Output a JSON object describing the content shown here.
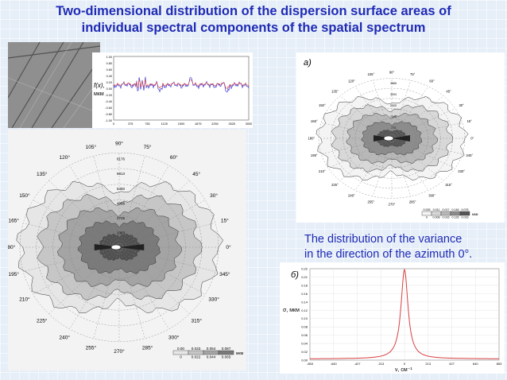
{
  "slide": {
    "title_line1": "Two-dimensional distribution of the dispersion surface areas of",
    "title_line2": "individual spectral components of the spatial spectrum",
    "caption_line1": "The distribution of the variance",
    "caption_line2": "in the direction of the azimuth 0°."
  },
  "profile_plot": {
    "ylabel_sym": "f(x),",
    "ylabel_unit": "мкм",
    "y_ticks": [
      "1.00",
      "0.80",
      "0.60",
      "0.40",
      "0.20",
      "0.00",
      "-0.20",
      "-0.40",
      "-0.60",
      "-0.80",
      "-1.00"
    ],
    "x_ticks": [
      "0",
      "375",
      "750",
      "1125",
      "1500",
      "1875",
      "2250",
      "2625",
      "3000"
    ]
  },
  "polar_a": {
    "panel_label": "а)",
    "angle_labels": [
      "90°",
      "75°",
      "60°",
      "45°",
      "30°",
      "15°",
      "0°",
      "345°",
      "330°",
      "315°",
      "300°",
      "285°",
      "270°",
      "255°",
      "240°",
      "225°",
      "210°",
      "195°",
      "180°",
      "165°",
      "150°",
      "135°",
      "120°",
      "105°"
    ],
    "radial_labels": [
      "3866",
      "3093",
      "2320",
      "1546",
      "773"
    ],
    "legend_values_top": [
      "0.005",
      "0.011",
      "0.017",
      "0.146",
      "0.076"
    ],
    "legend_values_bottom": [
      "0",
      "0.008",
      "0.016",
      "0.126",
      "0.016"
    ],
    "legend_unit": "мкм"
  },
  "polar_b": {
    "angle_labels": [
      "90°",
      "75°",
      "60°",
      "45°",
      "30°",
      "15°",
      "0°",
      "345°",
      "330°",
      "315°",
      "300°",
      "285°",
      "270°",
      "255°",
      "240°",
      "225°",
      "210°",
      "195°",
      "180°",
      "165°",
      "150°",
      "135°",
      "120°",
      "105°"
    ],
    "radial_labels": [
      "8176",
      "6813",
      "5450",
      "4088",
      "2725",
      "1363"
    ],
    "legend_values_top": [
      "0.00",
      "0.033",
      "0.054",
      "0.087"
    ],
    "legend_values_bottom": [
      "0",
      "0.022",
      "0.044",
      "0.065"
    ],
    "legend_unit": "мкм"
  },
  "variance_plot": {
    "panel_label": "б)",
    "ylabel": "σ, мкм",
    "xlabel": "ν, см⁻¹",
    "y_ticks": [
      "0.22",
      "0.21",
      "0.18",
      "0.16",
      "0.14",
      "0.12",
      "0.10",
      "0.08",
      "0.06",
      "0.04",
      "0.02",
      "0.00"
    ],
    "x_ticks": [
      "-853",
      "-640",
      "-427",
      "-213",
      "0",
      "213",
      "427",
      "640",
      "853"
    ]
  }
}
